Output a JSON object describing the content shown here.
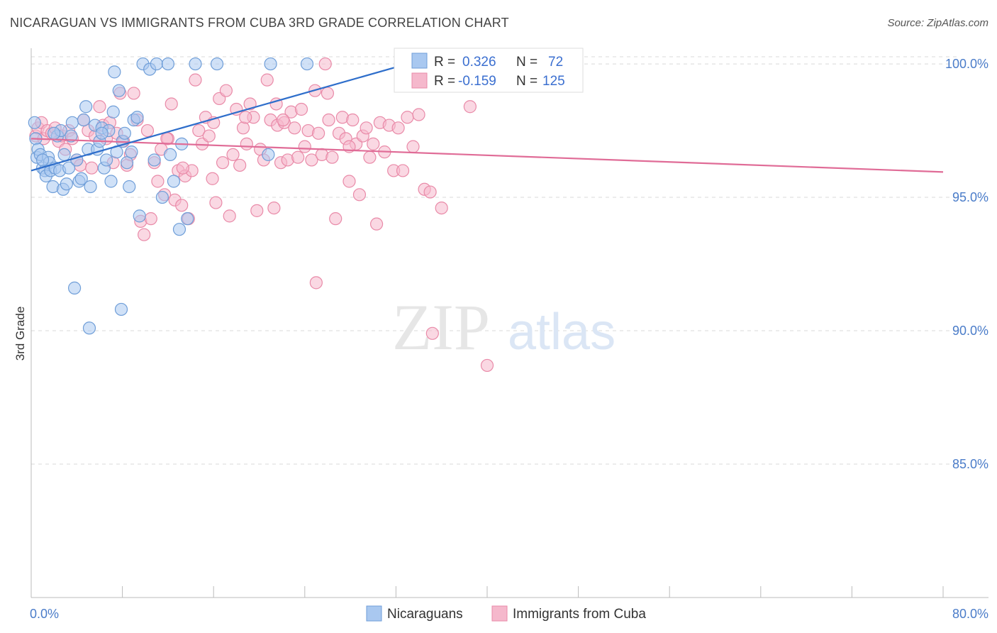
{
  "title": "NICARAGUAN VS IMMIGRANTS FROM CUBA 3RD GRADE CORRELATION CHART",
  "source": "Source: ZipAtlas.com",
  "watermark": {
    "zip": "ZIP",
    "atlas": "atlas"
  },
  "colors": {
    "blue_fill": "#a9c8f0",
    "blue_stroke": "#6f9ed8",
    "blue_line": "#2e6ecb",
    "pink_fill": "#f5b8cc",
    "pink_stroke": "#e98aa8",
    "pink_line": "#e06c97",
    "grid": "#d9d9d9",
    "tick_text": "#4a7cc9"
  },
  "stats_box": {
    "rows": [
      {
        "r_label": "R =",
        "r_value": "0.326",
        "n_label": "N =",
        "n_value": "72",
        "series": "blue"
      },
      {
        "r_label": "R =",
        "r_value": "-0.159",
        "n_label": "N =",
        "n_value": "125",
        "series": "pink"
      }
    ]
  },
  "chart_data": {
    "type": "scatter",
    "title": "NICARAGUAN VS IMMIGRANTS FROM CUBA 3RD GRADE CORRELATION CHART",
    "xlabel": "",
    "ylabel": "3rd Grade",
    "xlim": [
      0,
      80
    ],
    "ylim": [
      80,
      100.8
    ],
    "x_tick_labels": [
      {
        "value": 0,
        "label": "0.0%"
      },
      {
        "value": 80,
        "label": "80.0%"
      }
    ],
    "y_ticks": [
      {
        "value": 85,
        "label": "85.0%"
      },
      {
        "value": 90,
        "label": "90.0%"
      },
      {
        "value": 95,
        "label": "95.0%"
      },
      {
        "value": 100,
        "label": "100.0%"
      }
    ],
    "x_minor_ticks": [
      0,
      8,
      16,
      24,
      32,
      40,
      48,
      56,
      64,
      72,
      80
    ],
    "grid": true,
    "legend_position": "bottom-center",
    "series": [
      {
        "name": "Nicaraguans",
        "color": "blue",
        "trend": {
          "x": [
            0,
            33
          ],
          "y": [
            96.0,
            100.0
          ]
        },
        "points": [
          [
            0.3,
            97.8
          ],
          [
            0.4,
            97.2
          ],
          [
            0.5,
            96.5
          ],
          [
            0.6,
            96.8
          ],
          [
            0.8,
            96.6
          ],
          [
            1.0,
            96.1
          ],
          [
            1.2,
            96.0
          ],
          [
            1.3,
            95.8
          ],
          [
            1.5,
            96.5
          ],
          [
            1.6,
            96.3
          ],
          [
            1.7,
            96.0
          ],
          [
            1.9,
            95.4
          ],
          [
            2.1,
            96.1
          ],
          [
            2.3,
            97.3
          ],
          [
            2.5,
            96.0
          ],
          [
            2.6,
            97.5
          ],
          [
            2.8,
            95.3
          ],
          [
            2.9,
            96.6
          ],
          [
            3.1,
            95.5
          ],
          [
            3.3,
            96.1
          ],
          [
            3.5,
            97.3
          ],
          [
            3.6,
            97.8
          ],
          [
            4.0,
            96.4
          ],
          [
            4.2,
            95.6
          ],
          [
            4.4,
            95.7
          ],
          [
            4.6,
            97.9
          ],
          [
            4.8,
            98.4
          ],
          [
            5.0,
            96.8
          ],
          [
            5.2,
            95.4
          ],
          [
            5.6,
            97.7
          ],
          [
            5.8,
            96.8
          ],
          [
            6.0,
            97.1
          ],
          [
            6.2,
            97.6
          ],
          [
            6.4,
            96.1
          ],
          [
            6.6,
            96.4
          ],
          [
            6.8,
            97.5
          ],
          [
            7.0,
            95.6
          ],
          [
            7.2,
            98.2
          ],
          [
            7.3,
            99.7
          ],
          [
            7.5,
            96.7
          ],
          [
            7.7,
            99.0
          ],
          [
            8.0,
            97.1
          ],
          [
            8.2,
            97.4
          ],
          [
            8.4,
            96.3
          ],
          [
            8.6,
            95.4
          ],
          [
            8.8,
            96.7
          ],
          [
            9.0,
            97.9
          ],
          [
            9.3,
            98.0
          ],
          [
            9.5,
            94.3
          ],
          [
            9.8,
            100.0
          ],
          [
            10.4,
            99.8
          ],
          [
            10.8,
            96.4
          ],
          [
            11.0,
            100.0
          ],
          [
            11.5,
            95.0
          ],
          [
            12.0,
            100.0
          ],
          [
            12.2,
            96.6
          ],
          [
            12.5,
            95.6
          ],
          [
            13.0,
            93.8
          ],
          [
            13.2,
            97.0
          ],
          [
            13.7,
            94.2
          ],
          [
            14.4,
            100.0
          ],
          [
            16.3,
            100.0
          ],
          [
            20.8,
            96.6
          ],
          [
            21.0,
            100.0
          ],
          [
            24.2,
            100.0
          ],
          [
            33.0,
            100.0
          ],
          [
            5.1,
            90.1
          ],
          [
            3.8,
            91.6
          ],
          [
            7.9,
            90.8
          ],
          [
            6.2,
            97.4
          ],
          [
            1.0,
            96.4
          ],
          [
            2.0,
            97.4
          ]
        ]
      },
      {
        "name": "Immigrants from Cuba",
        "color": "pink",
        "trend": {
          "x": [
            0,
            80
          ],
          "y": [
            97.2,
            95.95
          ]
        },
        "points": [
          [
            0.4,
            97.3
          ],
          [
            0.6,
            97.6
          ],
          [
            0.9,
            97.8
          ],
          [
            1.1,
            97.2
          ],
          [
            1.4,
            97.5
          ],
          [
            1.8,
            97.4
          ],
          [
            2.1,
            97.6
          ],
          [
            2.4,
            97.1
          ],
          [
            2.7,
            97.3
          ],
          [
            3.0,
            96.8
          ],
          [
            3.3,
            97.5
          ],
          [
            3.6,
            97.2
          ],
          [
            4.0,
            96.4
          ],
          [
            4.3,
            96.2
          ],
          [
            4.6,
            97.9
          ],
          [
            5.0,
            97.5
          ],
          [
            5.3,
            96.1
          ],
          [
            5.6,
            97.3
          ],
          [
            6.0,
            98.4
          ],
          [
            6.3,
            97.7
          ],
          [
            6.6,
            97.2
          ],
          [
            6.9,
            97.8
          ],
          [
            7.2,
            96.3
          ],
          [
            7.5,
            97.4
          ],
          [
            7.8,
            98.9
          ],
          [
            8.1,
            97.1
          ],
          [
            8.4,
            96.2
          ],
          [
            8.7,
            96.6
          ],
          [
            9.0,
            98.9
          ],
          [
            9.3,
            97.9
          ],
          [
            9.6,
            94.1
          ],
          [
            9.9,
            93.6
          ],
          [
            10.2,
            97.5
          ],
          [
            10.5,
            94.2
          ],
          [
            10.8,
            96.3
          ],
          [
            11.1,
            95.6
          ],
          [
            11.4,
            96.8
          ],
          [
            11.7,
            95.1
          ],
          [
            12.0,
            97.2
          ],
          [
            12.3,
            98.5
          ],
          [
            12.6,
            94.9
          ],
          [
            12.9,
            96.0
          ],
          [
            13.2,
            94.7
          ],
          [
            13.5,
            95.8
          ],
          [
            13.8,
            94.2
          ],
          [
            14.1,
            96.0
          ],
          [
            14.4,
            99.4
          ],
          [
            14.7,
            97.5
          ],
          [
            15.0,
            97.0
          ],
          [
            15.3,
            98.0
          ],
          [
            15.6,
            97.3
          ],
          [
            15.9,
            95.7
          ],
          [
            16.2,
            94.8
          ],
          [
            16.5,
            98.7
          ],
          [
            16.8,
            96.3
          ],
          [
            17.1,
            99.0
          ],
          [
            17.4,
            94.3
          ],
          [
            17.7,
            96.6
          ],
          [
            18.0,
            98.3
          ],
          [
            18.3,
            96.2
          ],
          [
            18.6,
            97.6
          ],
          [
            18.9,
            97.0
          ],
          [
            19.2,
            98.5
          ],
          [
            19.5,
            98.0
          ],
          [
            19.8,
            94.5
          ],
          [
            20.1,
            96.8
          ],
          [
            20.4,
            96.4
          ],
          [
            20.7,
            99.4
          ],
          [
            21.0,
            97.9
          ],
          [
            21.3,
            94.6
          ],
          [
            21.6,
            97.7
          ],
          [
            21.9,
            96.3
          ],
          [
            22.2,
            97.8
          ],
          [
            22.5,
            96.4
          ],
          [
            22.8,
            98.2
          ],
          [
            23.1,
            97.6
          ],
          [
            23.4,
            96.5
          ],
          [
            23.7,
            98.3
          ],
          [
            24.0,
            96.9
          ],
          [
            24.3,
            97.5
          ],
          [
            24.6,
            96.4
          ],
          [
            24.9,
            99.0
          ],
          [
            25.2,
            97.4
          ],
          [
            25.5,
            96.6
          ],
          [
            25.8,
            100.0
          ],
          [
            26.1,
            97.9
          ],
          [
            26.4,
            96.5
          ],
          [
            26.7,
            94.2
          ],
          [
            27.0,
            97.4
          ],
          [
            27.3,
            98.0
          ],
          [
            27.6,
            97.2
          ],
          [
            27.9,
            95.6
          ],
          [
            28.2,
            97.9
          ],
          [
            28.5,
            97.0
          ],
          [
            28.8,
            95.1
          ],
          [
            29.1,
            97.3
          ],
          [
            29.4,
            97.6
          ],
          [
            29.7,
            96.5
          ],
          [
            30.0,
            97.0
          ],
          [
            30.3,
            94.0
          ],
          [
            30.6,
            97.8
          ],
          [
            31.0,
            96.7
          ],
          [
            31.4,
            97.7
          ],
          [
            31.8,
            96.0
          ],
          [
            32.2,
            97.6
          ],
          [
            32.6,
            96.0
          ],
          [
            33.0,
            98.0
          ],
          [
            33.5,
            96.9
          ],
          [
            34.0,
            98.1
          ],
          [
            34.5,
            95.3
          ],
          [
            35.0,
            95.2
          ],
          [
            36.0,
            94.6
          ],
          [
            37.1,
            100.0
          ],
          [
            38.5,
            98.4
          ],
          [
            25.0,
            91.8
          ],
          [
            35.2,
            89.9
          ],
          [
            40.0,
            88.7
          ],
          [
            16.0,
            97.8
          ],
          [
            11.9,
            97.2
          ],
          [
            13.3,
            96.1
          ],
          [
            21.5,
            98.5
          ],
          [
            26.0,
            98.9
          ],
          [
            18.8,
            98.0
          ],
          [
            27.9,
            96.9
          ],
          [
            22.1,
            97.9
          ]
        ]
      }
    ]
  },
  "legend": [
    {
      "label": "Nicaraguans",
      "color": "blue"
    },
    {
      "label": "Immigrants from Cuba",
      "color": "pink"
    }
  ]
}
